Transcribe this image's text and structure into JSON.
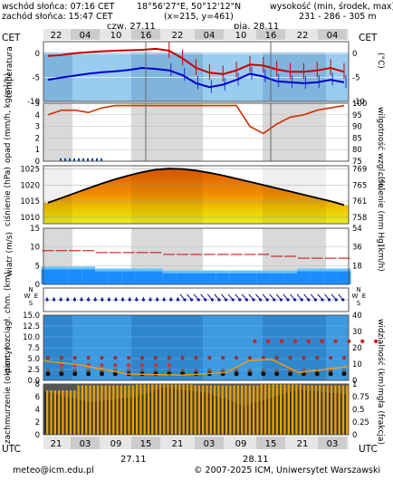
{
  "header": {
    "sunrise": "wschód słońca: 07:16 CET",
    "sunset": "zachód słońca: 15:47 CET",
    "coords": "18°56'27\"E, 50°12'12\"N",
    "grid": "(x=215, y=461)",
    "elevation_label": "wysokość (min, środek, max)",
    "elevation_values": "231 - 286 - 305 m",
    "tz_left": "CET",
    "tz_right": "CET",
    "tz_bottom_left": "UTC",
    "tz_bottom_right": "UTC",
    "day1": "czw, 27.11",
    "day2": "pią, 28.11",
    "day1_bottom": "27.11",
    "day2_bottom": "28.11"
  },
  "footer": {
    "email": "meteo@icm.edu.pl",
    "copyright": "© 2007-2025 ICM, Uniwersytet Warszawski"
  },
  "colors": {
    "temp_line": "#cc0000",
    "dew_line": "#0000cc",
    "humidity_line": "#cc3300",
    "pressure_line": "#000000",
    "wind_bar": "#1a8cff",
    "cloud_bars": "#e6a100",
    "visibility_line": "#ff9900"
  },
  "chart_data": [
    {
      "type": "line",
      "panel": "temperature",
      "title": "temperatura",
      "ylabel": "temperatura",
      "ylabel_right": "(°C)",
      "ylim": [
        -10,
        2.5
      ],
      "yticks": [
        0,
        -5,
        -10
      ],
      "x_hours_cet": [
        "22",
        "04",
        "10",
        "16",
        "22",
        "04",
        "10",
        "16",
        "22",
        "04"
      ],
      "series": [
        {
          "name": "temperatura",
          "values": [
            -0.5,
            -0.3,
            0.1,
            0.3,
            0.5,
            0.6,
            0.7,
            0.8,
            1.0,
            0.6,
            -1.0,
            -3.0,
            -4.0,
            -4.3,
            -3.5,
            -2.3,
            -2.5,
            -3.3,
            -3.8,
            -3.8,
            -3.5,
            -3.0,
            -3.8
          ]
        },
        {
          "name": "punkt rosy",
          "values": [
            -5.5,
            -5.0,
            -4.6,
            -4.2,
            -3.9,
            -3.7,
            -3.4,
            -3.0,
            -3.2,
            -3.5,
            -4.5,
            -6.2,
            -7.0,
            -6.5,
            -5.5,
            -4.2,
            -4.8,
            -5.8,
            -6.0,
            -6.2,
            -6.0,
            -5.5,
            -6.0
          ]
        }
      ]
    },
    {
      "type": "line",
      "panel": "precipitation_humidity",
      "ylabel": "opad (mm/h, kg/m²/h)",
      "ylabel_right": "wilgotność wzgl. (%)",
      "ylim": [
        0,
        5
      ],
      "ylim_right": [
        75,
        100
      ],
      "yticks": [
        5,
        4,
        3,
        2,
        1,
        0
      ],
      "yticks_right": [
        100,
        95,
        90,
        85,
        80,
        75
      ],
      "series": [
        {
          "name": "wilgotność",
          "values": [
            95,
            97,
            97,
            96,
            98,
            99,
            99,
            99,
            99,
            99,
            99,
            99,
            99,
            99,
            99,
            90,
            87,
            91,
            94,
            95,
            97,
            98,
            99
          ]
        }
      ]
    },
    {
      "type": "area",
      "panel": "pressure",
      "ylabel": "ciśnienie (hPa)",
      "ylabel_right": "ciśnienie (mm Hg)",
      "ylim": [
        1008,
        1026
      ],
      "yticks": [
        1025,
        1020,
        1015,
        1010
      ],
      "yticks_right": [
        769,
        765,
        761,
        758
      ],
      "series": [
        {
          "name": "ciśnienie",
          "values": [
            1014.5,
            1016,
            1017.5,
            1019,
            1020.5,
            1021.8,
            1023,
            1024,
            1024.8,
            1025.1,
            1025.0,
            1024.5,
            1023.8,
            1023,
            1022,
            1021,
            1020,
            1019,
            1018,
            1017,
            1016,
            1015,
            1013.8
          ]
        }
      ]
    },
    {
      "type": "bar",
      "panel": "wind",
      "ylabel": "wiatr (m/s)",
      "ylabel_right": "(km/h)",
      "ylim": [
        0,
        15
      ],
      "yticks": [
        15,
        10,
        5,
        0
      ],
      "yticks_right": [
        54,
        36,
        18
      ],
      "series": [
        {
          "name": "prędkość",
          "values": [
            4,
            4,
            4,
            4,
            3.5,
            3.5,
            3.5,
            3.5,
            3.5,
            3,
            3,
            3,
            3,
            3,
            3,
            3,
            3,
            3,
            3,
            3.5,
            3.5,
            3.5,
            3.5
          ]
        },
        {
          "name": "porywy",
          "values": [
            9,
            9,
            9,
            9,
            8.5,
            8.5,
            8.5,
            8.5,
            8.5,
            8,
            8,
            8,
            8,
            8,
            8,
            8,
            8,
            7.5,
            7.5,
            7,
            7,
            7,
            7
          ]
        }
      ]
    },
    {
      "type": "scatter",
      "panel": "clouds",
      "ylabel": "pion. rozciągł. chm. (km)",
      "ylabel_right": "widzialność (km)",
      "ylim": [
        0,
        15
      ],
      "yticks": [
        15.0,
        12.5,
        10.0,
        7.5,
        5.0,
        2.5,
        0.0
      ],
      "yticks_right": [
        40,
        30,
        20,
        10,
        0
      ]
    },
    {
      "type": "bar",
      "panel": "cloudiness",
      "ylabel": "zachmurzenie (oktanty)",
      "ylabel_right": "mgła (frakcja)",
      "ylim": [
        0,
        8
      ],
      "yticks": [
        8,
        6,
        4,
        2,
        0
      ],
      "yticks_right": [
        1,
        0.75,
        0.5,
        0.25,
        0
      ],
      "x_hours_utc": [
        "21",
        "03",
        "09",
        "15",
        "21",
        "03",
        "09",
        "15",
        "21",
        "03"
      ]
    }
  ]
}
